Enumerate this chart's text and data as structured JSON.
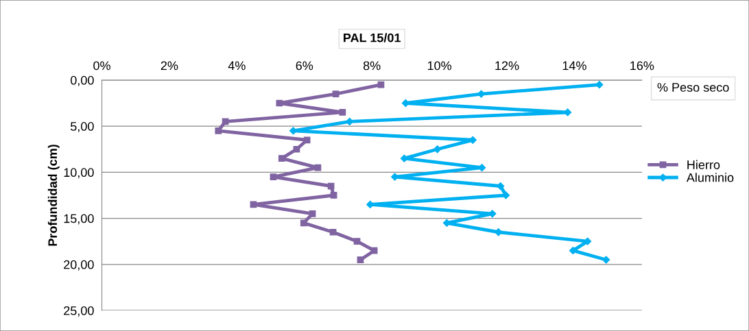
{
  "chart_data": {
    "type": "line",
    "title": "PAL 15/01",
    "xlabel": "% Peso seco",
    "ylabel": "Profundidad (cm)",
    "orientation": "horizontal",
    "x": [
      0.5,
      1.5,
      2.5,
      3.5,
      4.5,
      5.5,
      6.5,
      7.5,
      8.5,
      9.5,
      10.5,
      11.5,
      12.5,
      13.5,
      14.5,
      15.5,
      16.5,
      17.5,
      18.5,
      19.5
    ],
    "series": [
      {
        "name": "Hierro",
        "color": "#8064a2",
        "marker": "square",
        "values": [
          8.27,
          6.93,
          5.26,
          7.13,
          3.66,
          3.45,
          6.08,
          5.77,
          5.33,
          6.4,
          5.08,
          6.79,
          6.87,
          4.49,
          6.24,
          5.98,
          6.85,
          7.56,
          8.07,
          7.66
        ]
      },
      {
        "name": "Aluminio",
        "color": "#00b0f0",
        "marker": "diamond",
        "values": [
          14.74,
          11.24,
          9.0,
          13.8,
          7.34,
          5.67,
          10.99,
          9.94,
          8.96,
          11.26,
          8.68,
          11.81,
          11.97,
          7.95,
          11.57,
          10.22,
          11.75,
          14.39,
          13.96,
          14.94
        ]
      }
    ],
    "xlim": [
      0,
      16
    ],
    "xticks": [
      {
        "value": 0,
        "label": "0%"
      },
      {
        "value": 2,
        "label": "2%"
      },
      {
        "value": 4,
        "label": "4%"
      },
      {
        "value": 6,
        "label": "6%"
      },
      {
        "value": 8,
        "label": "8%"
      },
      {
        "value": 10,
        "label": "10%"
      },
      {
        "value": 12,
        "label": "12%"
      },
      {
        "value": 14,
        "label": "14%"
      },
      {
        "value": 16,
        "label": "16%"
      }
    ],
    "ylim": [
      25,
      0
    ],
    "yticks": [
      {
        "value": 0,
        "label": "0,00"
      },
      {
        "value": 5,
        "label": "5,00"
      },
      {
        "value": 10,
        "label": "10,00"
      },
      {
        "value": 15,
        "label": "15,00"
      },
      {
        "value": 20,
        "label": "20,00"
      },
      {
        "value": 25,
        "label": "25,00"
      }
    ],
    "grid": "y",
    "legend": "right",
    "line_style": "solid"
  }
}
